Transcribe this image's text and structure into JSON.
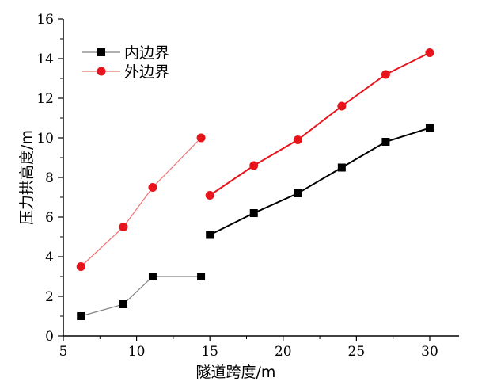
{
  "chart_data": {
    "type": "line",
    "title": "",
    "xlabel": "隧道跨度/m",
    "ylabel": "压力拱高度/m",
    "xlim": [
      5,
      32
    ],
    "ylim": [
      0,
      16
    ],
    "xticks": [
      5,
      10,
      15,
      20,
      25,
      30
    ],
    "yticks": [
      0,
      2,
      4,
      6,
      8,
      10,
      12,
      14,
      16
    ],
    "grid": false,
    "legend_position": "top-left",
    "series": [
      {
        "name": "内边界",
        "color": "#000000",
        "marker": "square",
        "segments": [
          {
            "style": "thin",
            "line_color": "#808080",
            "x": [
              6.2,
              9.1,
              11.1,
              14.4
            ],
            "y": [
              1.0,
              1.6,
              3.0,
              3.0
            ]
          },
          {
            "style": "thick",
            "line_color": "#000000",
            "x": [
              15.0,
              18.0,
              21.0,
              24.0,
              27.0,
              30.0
            ],
            "y": [
              5.1,
              6.2,
              7.2,
              8.5,
              9.8,
              10.5
            ]
          }
        ]
      },
      {
        "name": "外边界",
        "color": "#e8141c",
        "marker": "circle",
        "segments": [
          {
            "style": "thin",
            "line_color": "#f07070",
            "x": [
              6.2,
              9.1,
              11.1,
              14.4
            ],
            "y": [
              3.5,
              5.5,
              7.5,
              10.0
            ]
          },
          {
            "style": "thick",
            "line_color": "#e8141c",
            "x": [
              15.0,
              18.0,
              21.0,
              24.0,
              27.0,
              30.0
            ],
            "y": [
              7.1,
              8.6,
              9.9,
              11.6,
              13.2,
              14.3
            ]
          }
        ]
      }
    ]
  }
}
